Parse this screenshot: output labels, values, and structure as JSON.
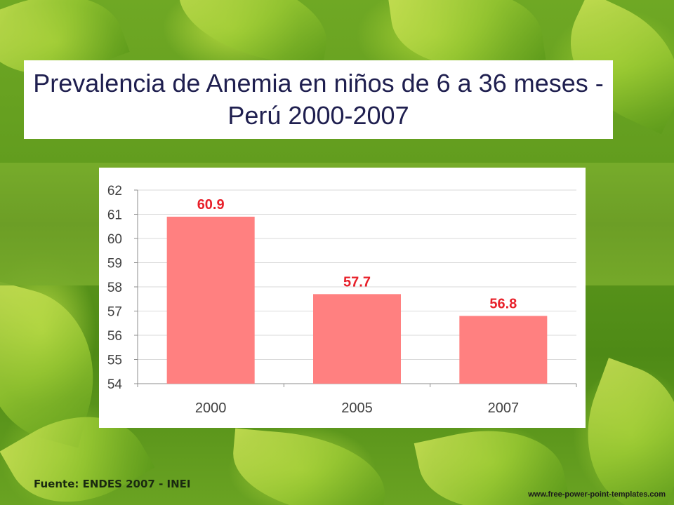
{
  "slide": {
    "title": "Prevalencia de Anemia en niños de 6 a 36 meses - Perú  2000-2007",
    "source": "Fuente: ENDES 2007 - INEI",
    "website": "www.free-power-point-templates.com",
    "background_theme": "green-leaves"
  },
  "chart_data": {
    "type": "bar",
    "title": "",
    "xlabel": "",
    "ylabel": "",
    "categories": [
      "2000",
      "2005",
      "2007"
    ],
    "values": [
      60.9,
      57.7,
      56.8
    ],
    "data_labels": [
      "60.9",
      "57.7",
      "56.8"
    ],
    "ylim": [
      54,
      62
    ],
    "yticks": [
      54,
      55,
      56,
      57,
      58,
      59,
      60,
      61,
      62
    ],
    "grid": true,
    "legend": "none",
    "colors": {
      "bar": "#ff8080",
      "data_label": "#e8202a",
      "grid": "#d9d9d9",
      "axis": "#8c8c8c",
      "tick_text": "#404040"
    }
  }
}
